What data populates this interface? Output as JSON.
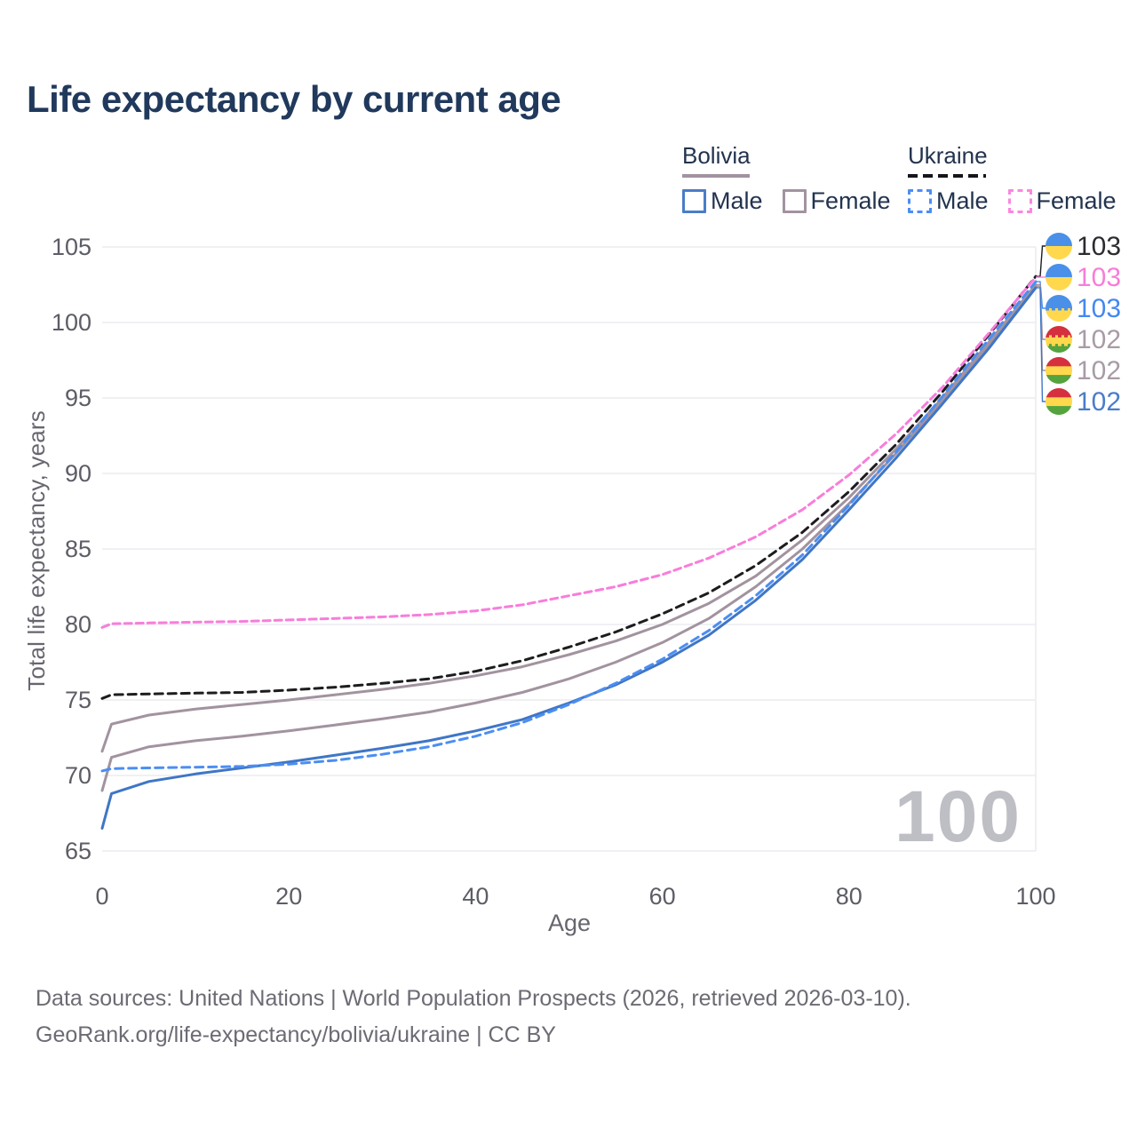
{
  "title": "Life expectancy by current age",
  "legend": {
    "groups": [
      {
        "id": "bolivia",
        "label": "Bolivia",
        "underline_style": "solid",
        "underline_color": "#a2939f",
        "underline_width": 76,
        "items": [
          {
            "label": "Male",
            "box_color": "#4a7dc9",
            "box_style": "solid"
          },
          {
            "label": "Female",
            "box_color": "#a2939f",
            "box_style": "solid"
          }
        ]
      },
      {
        "id": "ukraine",
        "label": "Ukraine",
        "underline_style": "dashed",
        "underline_color": "#16161a",
        "underline_width": 88,
        "items": [
          {
            "label": "Male",
            "box_color": "#4b8df8",
            "box_style": "dashed"
          },
          {
            "label": "Female",
            "box_color": "#fb86e0",
            "box_style": "dashed"
          }
        ]
      }
    ]
  },
  "chart_data": {
    "type": "line",
    "title": "Life expectancy by current age",
    "xlabel": "Age",
    "ylabel": "Total life expectancy, years",
    "xlim": [
      0,
      100
    ],
    "ylim": [
      65,
      105
    ],
    "xticks": [
      0,
      20,
      40,
      60,
      80,
      100
    ],
    "yticks": [
      65,
      70,
      75,
      80,
      85,
      90,
      95,
      100,
      105
    ],
    "grid": "horizontal",
    "legend_position": "top-right",
    "watermark": "100",
    "ages": [
      0,
      1,
      5,
      10,
      15,
      20,
      25,
      30,
      35,
      40,
      45,
      50,
      55,
      60,
      65,
      70,
      75,
      80,
      85,
      90,
      95,
      100
    ],
    "series": [
      {
        "name": "Ukraine Both sexes",
        "country": "Ukraine",
        "sex": "both",
        "color": "#1d1d1f",
        "dash": "9 6",
        "z": 5,
        "slot": 0,
        "flag": "ukraine",
        "flag_dashed": false,
        "end_label": {
          "text": "103",
          "color": "#2b2b30"
        },
        "values": [
          75.1,
          75.35,
          75.4,
          75.45,
          75.5,
          75.65,
          75.85,
          76.1,
          76.4,
          76.9,
          77.6,
          78.5,
          79.5,
          80.7,
          82.1,
          83.9,
          86.1,
          88.8,
          91.9,
          95.4,
          99.2,
          103.05
        ]
      },
      {
        "name": "Ukraine Female",
        "country": "Ukraine",
        "sex": "female",
        "color": "#f87ddb",
        "dash": "8 5",
        "z": 6,
        "slot": 1,
        "flag": "ukraine",
        "flag_dashed": false,
        "end_label": {
          "text": "103",
          "color": "#f87dd8"
        },
        "values": [
          79.8,
          80.05,
          80.1,
          80.15,
          80.2,
          80.3,
          80.4,
          80.5,
          80.65,
          80.9,
          81.3,
          81.9,
          82.5,
          83.3,
          84.4,
          85.8,
          87.6,
          89.9,
          92.6,
          95.7,
          99.3,
          103.0
        ]
      },
      {
        "name": "Ukraine Male",
        "country": "Ukraine",
        "sex": "male",
        "color": "#4c8ef2",
        "dash": "9 6",
        "z": 4,
        "slot": 2,
        "flag": "ukraine",
        "flag_dashed": true,
        "end_label": {
          "text": "103",
          "color": "#4488f0"
        },
        "values": [
          70.3,
          70.45,
          70.5,
          70.55,
          70.6,
          70.75,
          71.0,
          71.4,
          71.9,
          72.6,
          73.5,
          74.7,
          76.1,
          77.7,
          79.6,
          81.9,
          84.6,
          87.9,
          91.4,
          95.1,
          98.9,
          102.7
        ]
      },
      {
        "name": "Bolivia Female",
        "country": "Bolivia",
        "sex": "female",
        "color": "#a2939f",
        "dash": null,
        "z": 2,
        "slot": 3,
        "flag": "bolivia",
        "flag_dashed": true,
        "end_label": {
          "text": "102",
          "color": "#a89ba6"
        },
        "values": [
          71.6,
          73.4,
          74.0,
          74.4,
          74.7,
          75.0,
          75.35,
          75.7,
          76.1,
          76.6,
          77.2,
          78.0,
          78.9,
          80.0,
          81.4,
          83.2,
          85.6,
          88.4,
          91.6,
          95.0,
          98.7,
          102.5
        ]
      },
      {
        "name": "Bolivia Both sexes",
        "country": "Bolivia",
        "sex": "both",
        "color": "#a2939f",
        "dash": null,
        "z": 1,
        "slot": 4,
        "flag": "bolivia",
        "flag_dashed": false,
        "end_label": {
          "text": "102",
          "color": "#a89ba6"
        },
        "values": [
          69.0,
          71.2,
          71.9,
          72.3,
          72.6,
          72.95,
          73.35,
          73.75,
          74.2,
          74.8,
          75.5,
          76.4,
          77.5,
          78.8,
          80.4,
          82.5,
          85.0,
          88.0,
          91.3,
          94.8,
          98.5,
          102.4
        ]
      },
      {
        "name": "Bolivia Male",
        "country": "Bolivia",
        "sex": "male",
        "color": "#3f76c6",
        "dash": null,
        "z": 3,
        "slot": 5,
        "flag": "bolivia",
        "flag_dashed": false,
        "end_label": {
          "text": "102",
          "color": "#4a7dc9"
        },
        "values": [
          66.5,
          68.8,
          69.6,
          70.1,
          70.5,
          70.9,
          71.35,
          71.8,
          72.3,
          72.95,
          73.7,
          74.8,
          76.0,
          77.5,
          79.3,
          81.6,
          84.3,
          87.6,
          91.0,
          94.6,
          98.3,
          102.3
        ]
      }
    ],
    "flag_colors": {
      "ukraine": [
        [
          "#4a90e8",
          0,
          0.5
        ],
        [
          "#ffd84d",
          0.5,
          1
        ]
      ],
      "bolivia": [
        [
          "#d5303e",
          0,
          0.345
        ],
        [
          "#ffd84d",
          0.345,
          0.67
        ],
        [
          "#55a33e",
          0.67,
          1
        ]
      ]
    },
    "style": {
      "grid_color": "#ececf1",
      "tick_color": "#5c5d65",
      "axis_title_color": "#66666f",
      "watermark_color": "#bebec5"
    }
  },
  "footer": {
    "line1": "Data sources: United Nations | World Population Prospects (2026, retrieved 2026-03-10).",
    "line2": "GeoRank.org/life-expectancy/bolivia/ukraine | CC BY"
  }
}
